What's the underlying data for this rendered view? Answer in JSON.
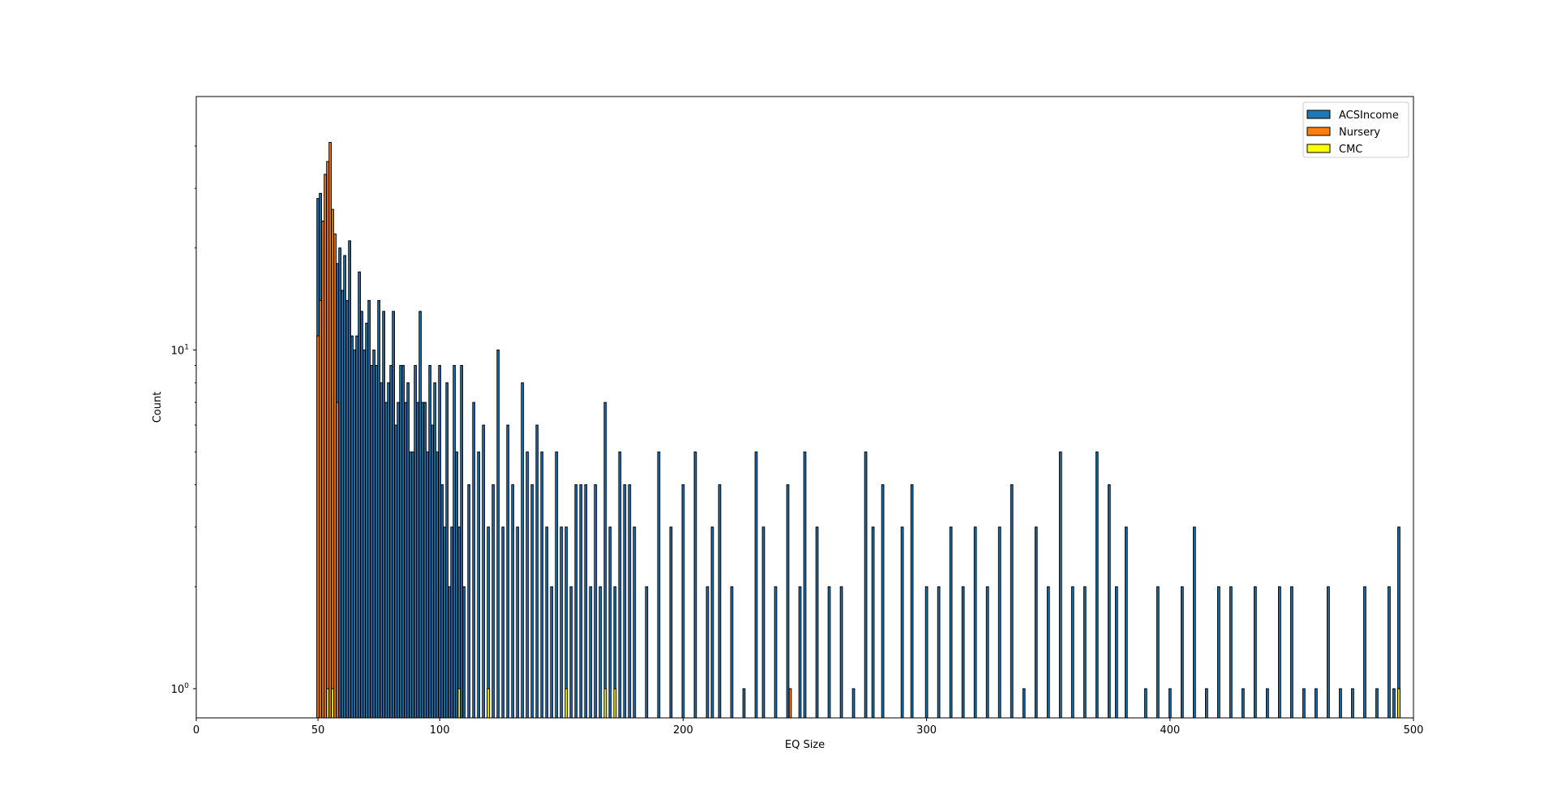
{
  "chart_data": {
    "type": "bar",
    "title": "",
    "xlabel": "EQ Size",
    "ylabel": "Count",
    "xlim": [
      0,
      500
    ],
    "ylim": [
      0.82,
      56
    ],
    "yscale": "log",
    "grid": false,
    "legend_position": "top-right",
    "x_ticks": [
      {
        "value": 0,
        "label": "0"
      },
      {
        "value": 50,
        "label": "50"
      },
      {
        "value": 100,
        "label": "100"
      },
      {
        "value": 200,
        "label": "200"
      },
      {
        "value": 300,
        "label": "300"
      },
      {
        "value": 400,
        "label": "400"
      },
      {
        "value": 500,
        "label": "500"
      }
    ],
    "y_major_ticks": [
      1,
      10
    ],
    "y_minor_ticks": [
      2,
      3,
      4,
      5,
      6,
      7,
      8,
      9,
      20,
      30,
      40
    ],
    "series": [
      {
        "name": "ACSIncome",
        "color": "#1f77b4",
        "x": [
          50,
          51,
          52,
          53,
          54,
          55,
          56,
          57,
          58,
          59,
          60,
          61,
          62,
          63,
          64,
          65,
          66,
          67,
          68,
          69,
          70,
          71,
          72,
          73,
          74,
          75,
          76,
          77,
          78,
          79,
          80,
          81,
          82,
          83,
          84,
          85,
          86,
          87,
          88,
          89,
          90,
          91,
          92,
          93,
          94,
          95,
          96,
          97,
          98,
          99,
          100,
          101,
          102,
          103,
          104,
          105,
          106,
          107,
          108,
          109,
          110,
          112,
          114,
          116,
          118,
          120,
          122,
          124,
          126,
          128,
          130,
          132,
          134,
          136,
          138,
          140,
          142,
          144,
          146,
          148,
          150,
          152,
          154,
          156,
          158,
          160,
          162,
          164,
          166,
          168,
          170,
          172,
          174,
          176,
          178,
          180,
          185,
          190,
          195,
          200,
          205,
          210,
          212,
          215,
          220,
          225,
          230,
          233,
          238,
          243,
          248,
          250,
          255,
          260,
          265,
          270,
          275,
          278,
          282,
          290,
          294,
          300,
          305,
          310,
          315,
          320,
          325,
          330,
          335,
          340,
          345,
          350,
          355,
          360,
          365,
          370,
          375,
          378,
          382,
          390,
          395,
          400,
          405,
          410,
          415,
          420,
          425,
          430,
          435,
          440,
          445,
          450,
          455,
          460,
          465,
          470,
          475,
          480,
          485,
          490,
          492,
          494
        ],
        "values": [
          28,
          29,
          24,
          22,
          13,
          12,
          12,
          16,
          18,
          20,
          15,
          19,
          14,
          21,
          11,
          10,
          11,
          17,
          13,
          10,
          12,
          14,
          9,
          10,
          9,
          14,
          8,
          13,
          7,
          8,
          9,
          13,
          6,
          7,
          9,
          9,
          7,
          8,
          5,
          5,
          9,
          7,
          13,
          7,
          7,
          5,
          9,
          6,
          8,
          5,
          9,
          4,
          3,
          8,
          2,
          3,
          9,
          5,
          3,
          9,
          2,
          4,
          7,
          5,
          6,
          3,
          4,
          10,
          3,
          6,
          4,
          3,
          8,
          5,
          4,
          6,
          5,
          3,
          2,
          5,
          3,
          3,
          2,
          4,
          4,
          4,
          2,
          4,
          2,
          7,
          3,
          2,
          5,
          4,
          4,
          3,
          2,
          5,
          3,
          4,
          5,
          2,
          3,
          4,
          2,
          1,
          5,
          3,
          2,
          4,
          2,
          5,
          3,
          2,
          2,
          1,
          5,
          3,
          4,
          3,
          4,
          2,
          2,
          3,
          2,
          3,
          2,
          3,
          4,
          1,
          3,
          2,
          5,
          2,
          2,
          5,
          4,
          2,
          3,
          1,
          2,
          1,
          2,
          3,
          1,
          2,
          2,
          1,
          2,
          1,
          2,
          2,
          1,
          1,
          2,
          1,
          1,
          2,
          1,
          2,
          1,
          3
        ],
        "width": 0.9
      },
      {
        "name": "Nursery",
        "color": "#ff7f0e",
        "x": [
          50,
          51,
          52,
          53,
          54,
          55,
          56,
          57,
          58,
          120,
          244
        ],
        "values": [
          11,
          14,
          24,
          33,
          36,
          41,
          26,
          22,
          7,
          1,
          1
        ],
        "width": 0.9
      },
      {
        "name": "CMC",
        "color": "#ffff00",
        "x": [
          54,
          56,
          108,
          120,
          152,
          168,
          172,
          494
        ],
        "values": [
          1,
          1,
          1,
          1,
          1,
          1,
          1,
          1
        ],
        "width": 0.9
      }
    ]
  }
}
